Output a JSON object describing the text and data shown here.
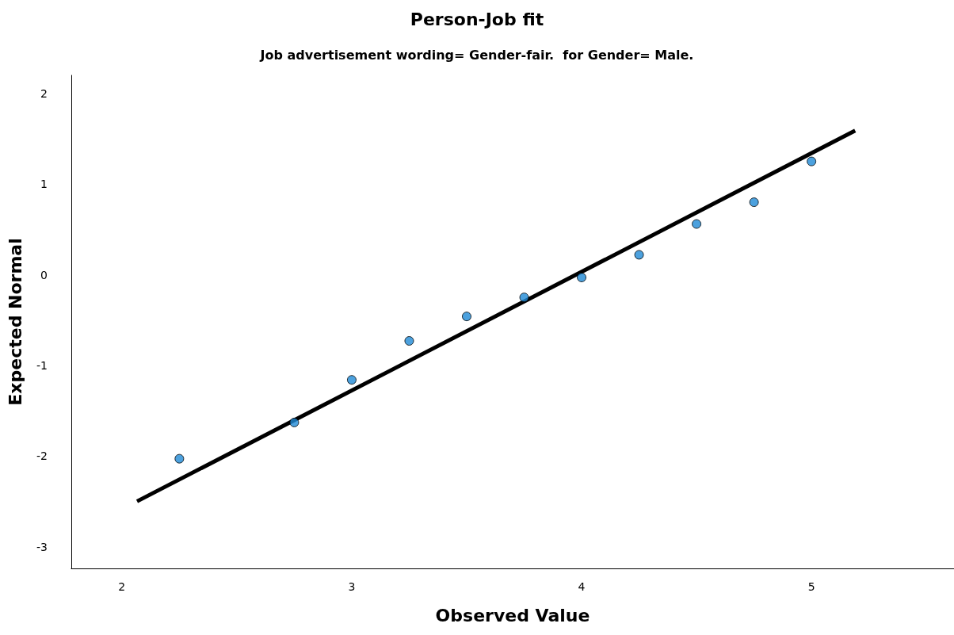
{
  "chart_data": {
    "type": "scatter",
    "title": "Person-Job fit",
    "subtitle": "Job advertisement wording= Gender-fair.  for Gender= Male.",
    "xlabel": "Observed Value",
    "ylabel": "Expected Normal",
    "xlim": [
      1.78,
      5.62
    ],
    "ylim": [
      -3.24,
      2.2
    ],
    "xticks": [
      2,
      3,
      4,
      5
    ],
    "yticks": [
      -3,
      -2,
      -1,
      0,
      1,
      2
    ],
    "grid": false,
    "series": [
      {
        "color": "#1f8ad6",
        "marker": "circle",
        "x": [
          2.25,
          2.75,
          3.0,
          3.25,
          3.5,
          3.75,
          4.0,
          4.25,
          4.5,
          4.75,
          5.0
        ],
        "values": [
          -2.03,
          -1.63,
          -1.16,
          -0.73,
          -0.46,
          -0.25,
          -0.03,
          0.22,
          0.56,
          0.8,
          1.25
        ]
      },
      {
        "type": "line",
        "color": "#000000",
        "marker": "none",
        "line_style": "solid",
        "x": [
          2.066,
          5.19
        ],
        "values": [
          -2.5,
          1.59
        ]
      }
    ]
  }
}
